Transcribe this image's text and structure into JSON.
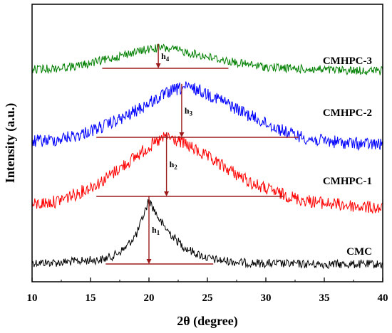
{
  "chart_data": {
    "type": "line",
    "title": "",
    "xlabel": "2θ (degree)",
    "ylabel": "Intensity (a.u.)",
    "xlim": [
      10,
      40
    ],
    "x_ticks": [
      10,
      15,
      20,
      25,
      30,
      35,
      40
    ],
    "x_tick_labels": [
      "10",
      "15",
      "20",
      "25",
      "30",
      "35",
      "40"
    ],
    "y_ticks_shown": false,
    "grid": false,
    "legend": "labels placed at right end of each curve",
    "series": [
      {
        "name": "CMC",
        "color": "#000000",
        "peak_x": 20.0,
        "baseline_from_x": 16.3,
        "baseline_to_x": 25.5,
        "peak_height_label": "h",
        "peak_height_subscript": "1",
        "points": [
          [
            10,
            0.08
          ],
          [
            12,
            0.08
          ],
          [
            14,
            0.1
          ],
          [
            16,
            0.12
          ],
          [
            17,
            0.17
          ],
          [
            18,
            0.27
          ],
          [
            19,
            0.46
          ],
          [
            20,
            0.88
          ],
          [
            21,
            0.6
          ],
          [
            22,
            0.42
          ],
          [
            23,
            0.28
          ],
          [
            24,
            0.2
          ],
          [
            25,
            0.14
          ],
          [
            26,
            0.11
          ],
          [
            28,
            0.08
          ],
          [
            30,
            0.07
          ],
          [
            35,
            0.06
          ],
          [
            40,
            0.06
          ]
        ]
      },
      {
        "name": "CMHPC-1",
        "color": "#ff0000",
        "peak_x": 21.5,
        "baseline_from_x": 15.5,
        "baseline_to_x": 31.5,
        "peak_height_label": "h",
        "peak_height_subscript": "2",
        "points": [
          [
            10,
            0.1
          ],
          [
            12,
            0.14
          ],
          [
            14,
            0.24
          ],
          [
            16,
            0.38
          ],
          [
            18,
            0.58
          ],
          [
            20,
            0.78
          ],
          [
            21.5,
            0.9
          ],
          [
            23,
            0.82
          ],
          [
            25,
            0.66
          ],
          [
            27,
            0.5
          ],
          [
            29,
            0.34
          ],
          [
            31,
            0.24
          ],
          [
            33,
            0.16
          ],
          [
            35,
            0.12
          ],
          [
            38,
            0.08
          ],
          [
            40,
            0.06
          ]
        ]
      },
      {
        "name": "CMHPC-2",
        "color": "#0000ff",
        "peak_x": 22.8,
        "baseline_from_x": 15.5,
        "baseline_to_x": 32.8,
        "peak_height_label": "h",
        "peak_height_subscript": "3",
        "points": [
          [
            10,
            0.08
          ],
          [
            12,
            0.1
          ],
          [
            14,
            0.16
          ],
          [
            16,
            0.26
          ],
          [
            18,
            0.38
          ],
          [
            20,
            0.55
          ],
          [
            22,
            0.7
          ],
          [
            23,
            0.74
          ],
          [
            24,
            0.72
          ],
          [
            26,
            0.6
          ],
          [
            28,
            0.44
          ],
          [
            30,
            0.3
          ],
          [
            32,
            0.18
          ],
          [
            34,
            0.1
          ],
          [
            37,
            0.06
          ],
          [
            40,
            0.04
          ]
        ]
      },
      {
        "name": "CMHPC-3",
        "color": "#008000",
        "peak_x": 20.8,
        "baseline_from_x": 16.0,
        "baseline_to_x": 26.8,
        "peak_height_label": "h",
        "peak_height_subscript": "4",
        "points": [
          [
            10,
            0.08
          ],
          [
            12,
            0.1
          ],
          [
            14,
            0.14
          ],
          [
            16,
            0.22
          ],
          [
            18,
            0.32
          ],
          [
            20,
            0.4
          ],
          [
            21,
            0.42
          ],
          [
            22,
            0.4
          ],
          [
            24,
            0.32
          ],
          [
            26,
            0.24
          ],
          [
            28,
            0.17
          ],
          [
            30,
            0.12
          ],
          [
            33,
            0.09
          ],
          [
            36,
            0.07
          ],
          [
            40,
            0.06
          ]
        ]
      }
    ]
  }
}
